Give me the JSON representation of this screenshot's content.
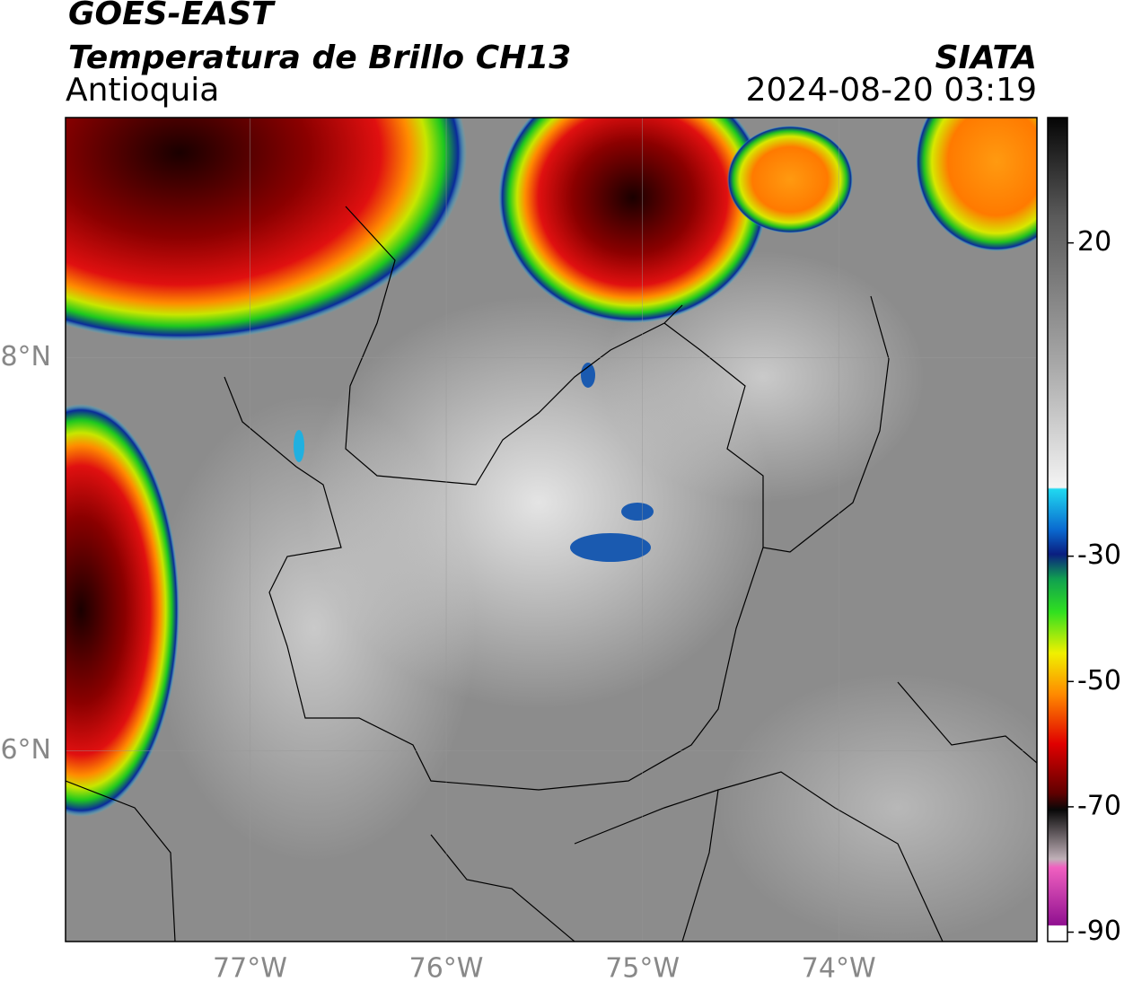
{
  "header": {
    "title": "GOES-EAST",
    "subtitle": "Temperatura de Brillo CH13",
    "region": "Antioquia",
    "source": "SIATA",
    "timestamp": "2024-08-20 03:19"
  },
  "map": {
    "lonlim": [
      -77.94,
      -72.99
    ],
    "latlim": [
      5.03,
      9.22
    ],
    "lon_ticks": [
      {
        "value": -77,
        "label": "77°W"
      },
      {
        "value": -76,
        "label": "76°W"
      },
      {
        "value": -75,
        "label": "75°W"
      },
      {
        "value": -74,
        "label": "74°W"
      }
    ],
    "lat_ticks": [
      {
        "value": 8,
        "label": "8°N"
      },
      {
        "value": 6,
        "label": "6°N"
      }
    ]
  },
  "colorbar": {
    "lim": [
      -91.5,
      40
    ],
    "ticks": [
      20,
      -30,
      -50,
      -70,
      -90
    ]
  }
}
